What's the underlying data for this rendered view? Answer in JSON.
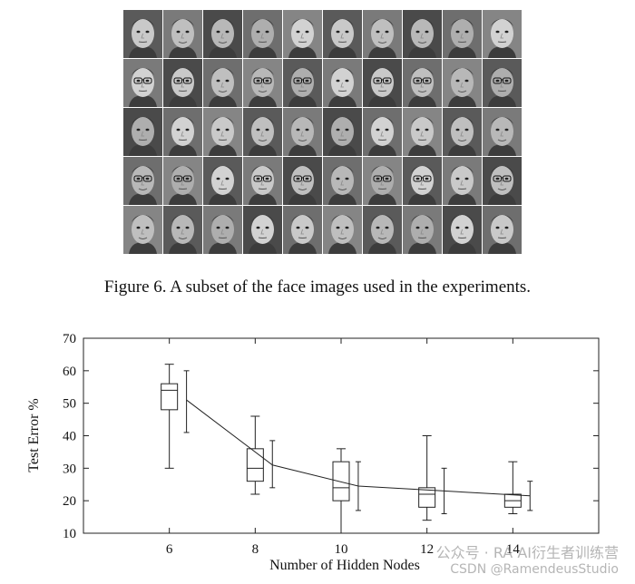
{
  "figure_caption": "Figure 6.  A subset of the face images used in the experiments.",
  "face_grid": {
    "rows": 5,
    "cols": 10
  },
  "chart_data": {
    "type": "box",
    "title": "",
    "xlabel": "Number of Hidden Nodes",
    "ylabel": "Test Error %",
    "xlim": [
      4,
      16
    ],
    "ylim": [
      10,
      70
    ],
    "x_ticks": [
      6,
      8,
      10,
      12,
      14
    ],
    "y_ticks": [
      10,
      20,
      30,
      40,
      50,
      60,
      70
    ],
    "series": [
      {
        "kind": "boxplot",
        "x": [
          6,
          8,
          10,
          12,
          14
        ],
        "whisker_low": [
          30,
          22,
          10,
          14,
          16
        ],
        "q1": [
          48,
          26,
          20,
          18,
          18
        ],
        "median": [
          54,
          30,
          24,
          22,
          20
        ],
        "q3": [
          56,
          36,
          32,
          24,
          22
        ],
        "whisker_high": [
          62,
          46,
          36,
          40,
          32
        ]
      },
      {
        "kind": "mean-errorbar-line",
        "x": [
          6.4,
          8.4,
          10.4,
          12.4,
          14.4
        ],
        "mean": [
          51,
          31,
          24.5,
          23,
          21.5
        ],
        "low": [
          41,
          24,
          17,
          16,
          17
        ],
        "high": [
          60,
          38.5,
          32,
          30,
          26
        ]
      }
    ]
  },
  "watermark": {
    "line1": "公众号 · RA AI衍生者训练营",
    "line2": "CSDN @RamendeusStudio"
  }
}
